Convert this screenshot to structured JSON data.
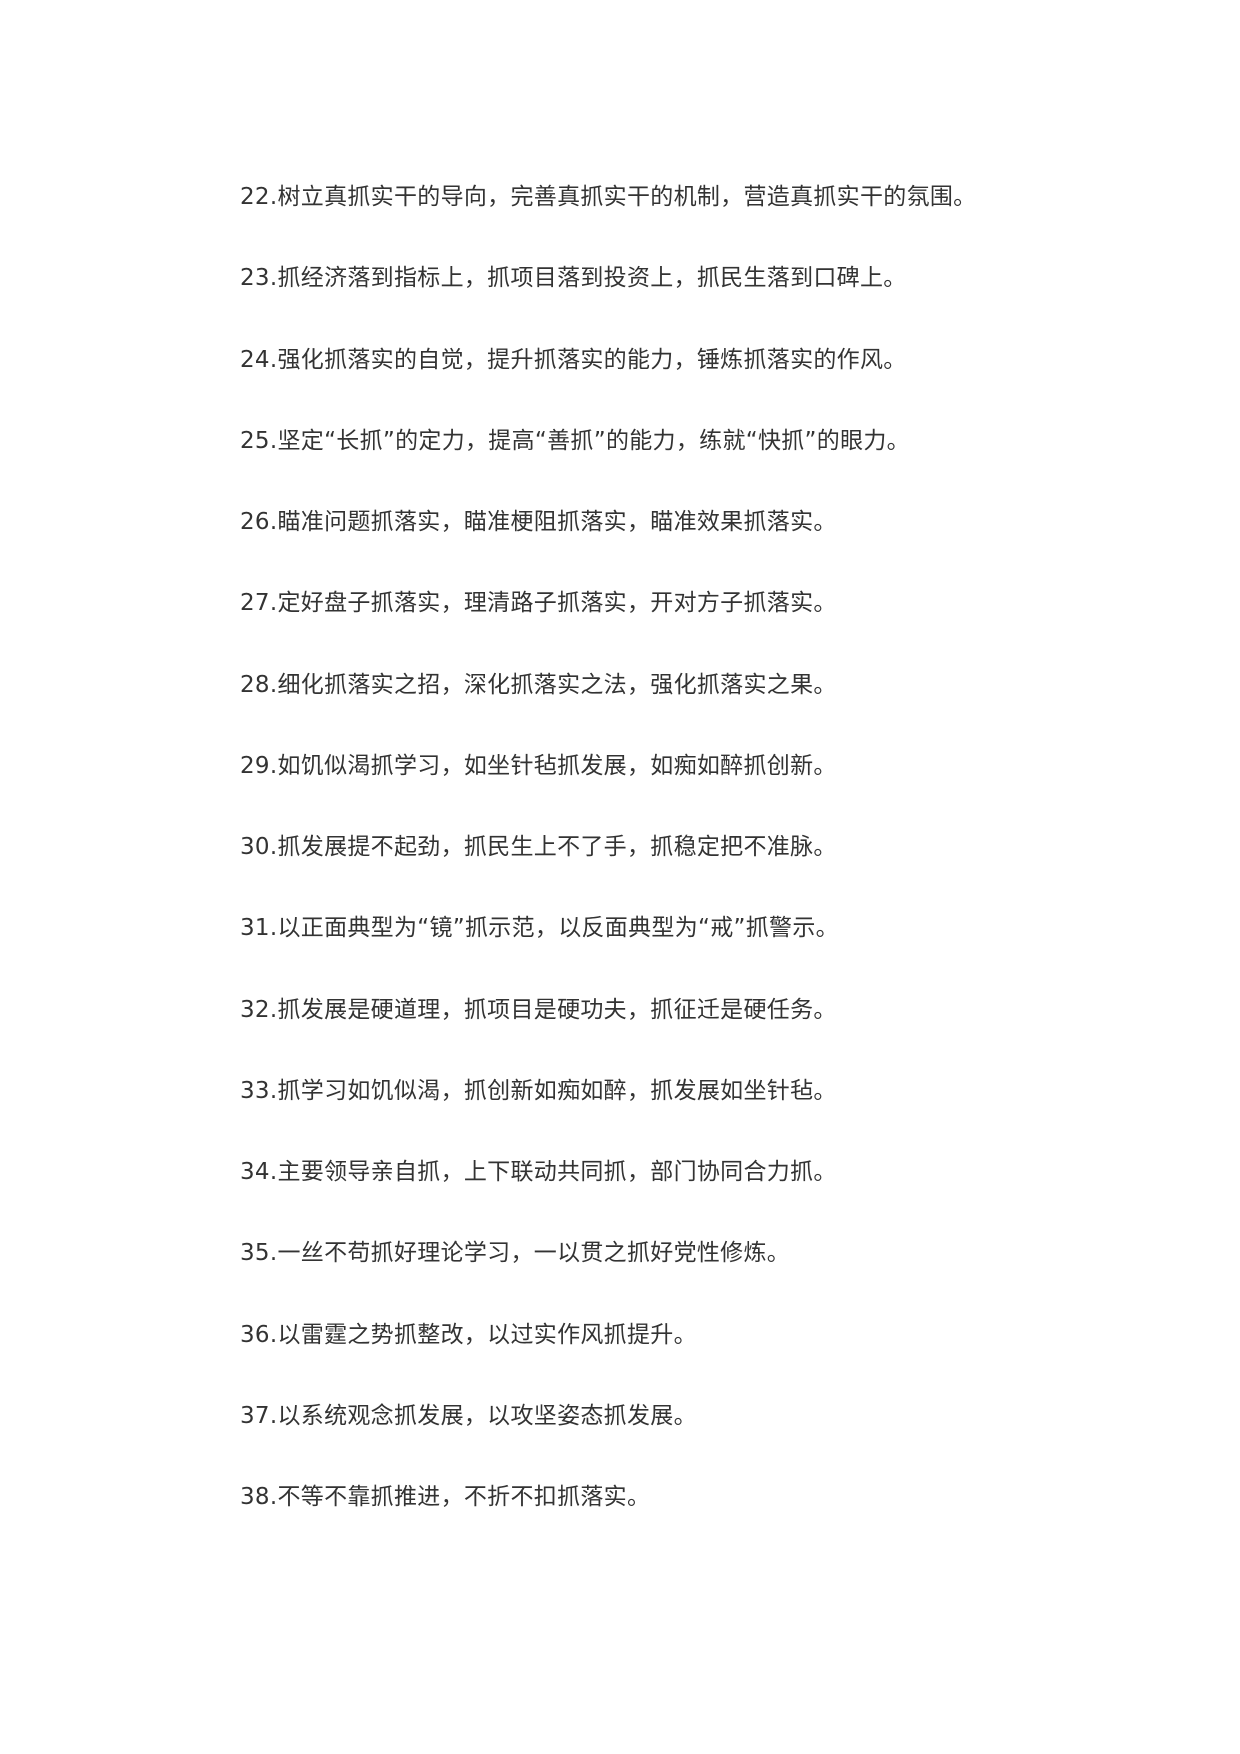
{
  "items": [
    "22.树立真抓实干的导向，完善真抓实干的机制，营造真抓实干的氛围。",
    "23.抓经济落到指标上，抓项目落到投资上，抓民生落到口碑上。",
    "24.强化抓落实的自觉，提升抓落实的能力，锤炼抓落实的作风。",
    "25.坚定“长抓”的定力，提高“善抓”的能力，练就“快抓”的眼力。",
    "26.瞄准问题抓落实，瞄准梗阻抓落实，瞄准效果抓落实。",
    "27.定好盘子抓落实，理清路子抓落实，开对方子抓落实。",
    "28.细化抓落实之招，深化抓落实之法，强化抓落实之果。",
    "29.如饥似渴抓学习，如坐针毡抓发展，如痴如醉抓创新。",
    "30.抓发展提不起劲，抓民生上不了手，抓稳定把不准脉。",
    "31.以正面典型为“镜”抓示范，以反面典型为“戒”抓警示。",
    "32.抓发展是硬道理，抓项目是硬功夫，抓征迁是硬任务。",
    "33.抓学习如饥似渴，抓创新如痴如醉，抓发展如坐针毡。",
    "34.主要领导亲自抓，上下联动共同抓，部门协同合力抓。",
    "35.一丝不苟抓好理论学习，一以贯之抓好党性修炼。",
    "36.以雷霆之势抓整改，以过实作风抓提升。",
    "37.以系统观念抓发展，以攻坚姿态抓发展。",
    "38.不等不靠抓推进，不折不扣抓落实。"
  ]
}
